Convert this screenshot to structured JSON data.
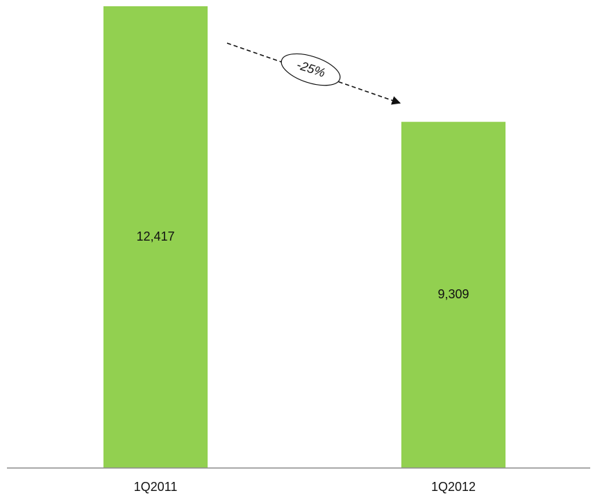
{
  "chart_data": {
    "type": "bar",
    "title": "",
    "xlabel": "",
    "ylabel": "",
    "categories": [
      "1Q2011",
      "1Q2012"
    ],
    "values": [
      12417,
      9309
    ],
    "value_labels": [
      "12,417",
      "9,309"
    ],
    "ylim": [
      0,
      12417
    ],
    "grid": false,
    "legend": "none",
    "bar_color": "#92d050",
    "axis_color": "#8c8c8c",
    "annotation": {
      "text": "-25%",
      "from_category": "1Q2011",
      "to_category": "1Q2012",
      "style": "dashed-arrow-with-oval-label"
    }
  }
}
